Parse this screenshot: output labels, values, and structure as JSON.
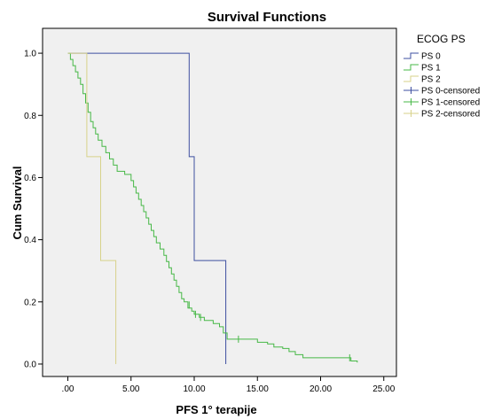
{
  "chart_data": {
    "type": "line",
    "title": "Survival Functions",
    "xlabel": "PFS 1° terapije",
    "ylabel": "Cum Survival",
    "xlim": [
      -2,
      26
    ],
    "ylim": [
      -0.04,
      1.08
    ],
    "x_ticks": [
      {
        "value": 0,
        "label": ".00"
      },
      {
        "value": 5,
        "label": "5.00"
      },
      {
        "value": 10,
        "label": "10.00"
      },
      {
        "value": 15,
        "label": "15.00"
      },
      {
        "value": 20,
        "label": "20.00"
      },
      {
        "value": 25,
        "label": "25.00"
      }
    ],
    "y_ticks": [
      {
        "value": 0,
        "label": "0.0"
      },
      {
        "value": 0.2,
        "label": "0.2"
      },
      {
        "value": 0.4,
        "label": "0.4"
      },
      {
        "value": 0.6,
        "label": "0.6"
      },
      {
        "value": 0.8,
        "label": "0.8"
      },
      {
        "value": 1.0,
        "label": "1.0"
      }
    ],
    "grid": false,
    "plot_background": "#f0f0f0",
    "legend": {
      "title": "ECOG PS",
      "position": "right",
      "entries": [
        {
          "label": "PS 0",
          "color": "#3e4fa0",
          "kind": "step"
        },
        {
          "label": "PS 1",
          "color": "#47b847",
          "kind": "step"
        },
        {
          "label": "PS 2",
          "color": "#d7d28a",
          "kind": "step"
        },
        {
          "label": "PS 0-censored",
          "color": "#3e4fa0",
          "kind": "censor"
        },
        {
          "label": "PS 1-censored",
          "color": "#47b847",
          "kind": "censor"
        },
        {
          "label": "PS 2-censored",
          "color": "#d7d28a",
          "kind": "censor"
        }
      ]
    },
    "series": [
      {
        "name": "PS 0",
        "color": "#3e4fa0",
        "points": [
          [
            0,
            1.0
          ],
          [
            1.5,
            1.0
          ],
          [
            9.6,
            1.0
          ],
          [
            9.6,
            0.667
          ],
          [
            10.0,
            0.667
          ],
          [
            10.0,
            0.333
          ],
          [
            12.5,
            0.333
          ],
          [
            12.5,
            0.0
          ]
        ]
      },
      {
        "name": "PS 1",
        "color": "#47b847",
        "points": [
          [
            0,
            1.0
          ],
          [
            0.2,
            0.98
          ],
          [
            0.4,
            0.96
          ],
          [
            0.6,
            0.94
          ],
          [
            0.8,
            0.92
          ],
          [
            1.0,
            0.9
          ],
          [
            1.2,
            0.87
          ],
          [
            1.4,
            0.84
          ],
          [
            1.6,
            0.81
          ],
          [
            1.8,
            0.78
          ],
          [
            2.0,
            0.76
          ],
          [
            2.2,
            0.74
          ],
          [
            2.4,
            0.72
          ],
          [
            2.7,
            0.7
          ],
          [
            3.0,
            0.68
          ],
          [
            3.3,
            0.66
          ],
          [
            3.6,
            0.64
          ],
          [
            3.9,
            0.62
          ],
          [
            4.2,
            0.62
          ],
          [
            4.5,
            0.61
          ],
          [
            4.8,
            0.61
          ],
          [
            5.0,
            0.59
          ],
          [
            5.2,
            0.57
          ],
          [
            5.4,
            0.55
          ],
          [
            5.6,
            0.53
          ],
          [
            5.8,
            0.51
          ],
          [
            6.0,
            0.49
          ],
          [
            6.2,
            0.47
          ],
          [
            6.4,
            0.45
          ],
          [
            6.6,
            0.43
          ],
          [
            6.8,
            0.41
          ],
          [
            7.0,
            0.39
          ],
          [
            7.3,
            0.37
          ],
          [
            7.6,
            0.35
          ],
          [
            7.8,
            0.33
          ],
          [
            8.0,
            0.31
          ],
          [
            8.2,
            0.29
          ],
          [
            8.4,
            0.27
          ],
          [
            8.6,
            0.25
          ],
          [
            8.8,
            0.23
          ],
          [
            9.0,
            0.21
          ],
          [
            9.2,
            0.2
          ],
          [
            9.5,
            0.18
          ],
          [
            9.8,
            0.17
          ],
          [
            10.0,
            0.16
          ],
          [
            10.4,
            0.15
          ],
          [
            10.8,
            0.14
          ],
          [
            11.5,
            0.13
          ],
          [
            12.0,
            0.12
          ],
          [
            12.3,
            0.1
          ],
          [
            12.6,
            0.08
          ],
          [
            14.5,
            0.08
          ],
          [
            15.0,
            0.07
          ],
          [
            15.8,
            0.065
          ],
          [
            16.3,
            0.055
          ],
          [
            17.0,
            0.05
          ],
          [
            17.5,
            0.04
          ],
          [
            18.0,
            0.03
          ],
          [
            18.6,
            0.02
          ],
          [
            22.3,
            0.02
          ],
          [
            22.4,
            0.01
          ],
          [
            22.9,
            0.01
          ],
          [
            22.9,
            0.005
          ]
        ]
      },
      {
        "name": "PS 2",
        "color": "#d7d28a",
        "points": [
          [
            0,
            1.0
          ],
          [
            1.5,
            1.0
          ],
          [
            1.5,
            0.667
          ],
          [
            2.6,
            0.667
          ],
          [
            2.6,
            0.333
          ],
          [
            3.8,
            0.333
          ],
          [
            3.8,
            0.0
          ]
        ]
      }
    ],
    "censored": [
      {
        "series": "PS 1",
        "points": [
          [
            9.6,
            0.19
          ],
          [
            10.1,
            0.16
          ],
          [
            10.5,
            0.15
          ],
          [
            13.5,
            0.08
          ],
          [
            22.3,
            0.02
          ]
        ]
      }
    ]
  }
}
